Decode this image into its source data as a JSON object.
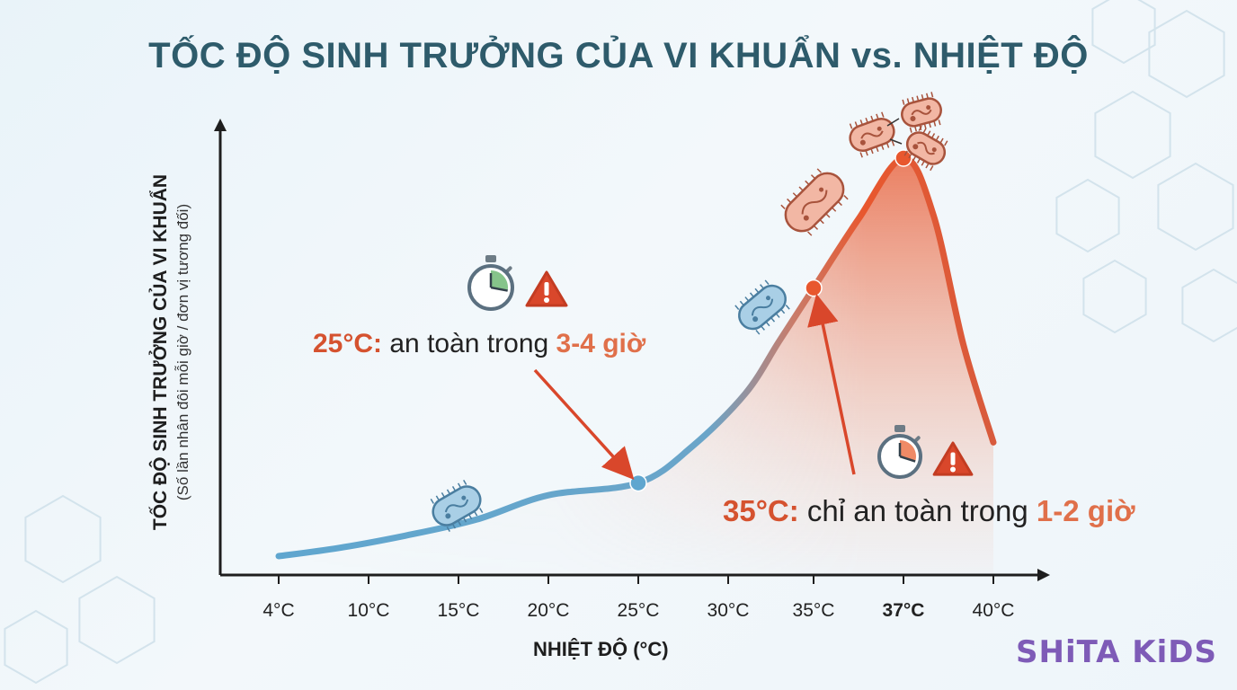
{
  "title": "TỐC ĐỘ SINH TRƯỞNG CỦA VI KHUẨN vs. NHIỆT ĐỘ",
  "brand": "SHiTA KiDS",
  "annotations": {
    "a25": {
      "temp": "25°C:",
      "text": "an toàn trong",
      "duration": "3-4 giờ"
    },
    "a35": {
      "temp": "35°C:",
      "text": "chỉ an toàn trong",
      "duration": "1-2 giờ"
    }
  },
  "colors": {
    "cool": "#5fa6cf",
    "hot": "#e8572e",
    "title": "#2e5b6b",
    "brand": "#7e5bb7"
  },
  "icons": [
    "stopwatch-icon",
    "warning-icon",
    "bacteria-icon",
    "dividing-bacteria-icon"
  ],
  "chart_data": {
    "type": "line",
    "title": "TỐC ĐỘ SINH TRƯỞNG CỦA VI KHUẨN vs. NHIỆT ĐỘ",
    "xlabel": "NHIỆT ĐỘ (°C)",
    "ylabel": "TỐC ĐỘ SINH TRƯỞNG CỦA VI KHUẨN",
    "ylabel_sub": "(Số lần nhân đôi mỗi giờ / đơn vị tương đối)",
    "tick_labels": [
      "4°C",
      "10°C",
      "15°C",
      "20°C",
      "25°C",
      "30°C",
      "35°C",
      "37°C",
      "40°C"
    ],
    "tick_values": [
      4,
      10,
      15,
      20,
      25,
      30,
      35,
      37,
      40
    ],
    "highlight_tick": "37°C",
    "y_ticks_shown": false,
    "series": [
      {
        "x": [
          4,
          8,
          12,
          16,
          20,
          25,
          28,
          31,
          33,
          35,
          36,
          37,
          38,
          39,
          40
        ],
        "y": [
          0.02,
          0.04,
          0.07,
          0.11,
          0.17,
          0.2,
          0.29,
          0.42,
          0.55,
          0.68,
          0.85,
          1.0,
          0.86,
          0.54,
          0.3
        ]
      }
    ],
    "markers": [
      {
        "x": 25,
        "y": 0.2
      },
      {
        "x": 35,
        "y": 0.68
      },
      {
        "x": 37,
        "y": 1.0
      }
    ],
    "ylim": [
      0,
      1.0
    ]
  }
}
